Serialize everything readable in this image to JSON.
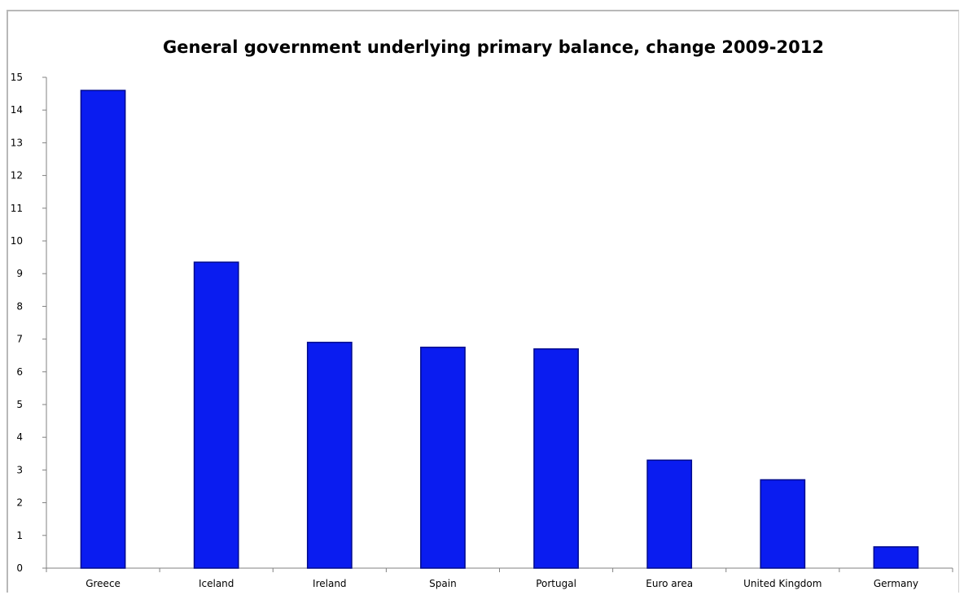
{
  "chart_data": {
    "type": "bar",
    "title": "General government underlying primary balance, change 2009-2012",
    "xlabel": "",
    "ylabel": "",
    "categories": [
      "Greece",
      "Iceland",
      "Ireland",
      "Spain",
      "Portugal",
      "Euro area",
      "United Kingdom",
      "Germany"
    ],
    "values": [
      14.6,
      9.35,
      6.9,
      6.75,
      6.7,
      3.3,
      2.7,
      0.65
    ],
    "ylim": [
      0,
      15
    ],
    "yticks": [
      0,
      1,
      2,
      3,
      4,
      5,
      6,
      7,
      8,
      9,
      10,
      11,
      12,
      13,
      14,
      15
    ],
    "grid": false,
    "legend": "none",
    "bar_color": "#0a1cf0",
    "bar_edge_color": "#000a8c"
  }
}
